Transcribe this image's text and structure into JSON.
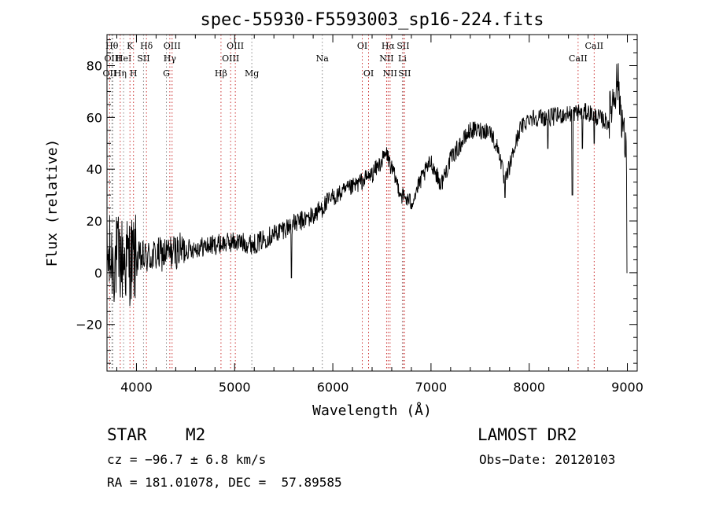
{
  "chart_data": {
    "type": "line",
    "title": "spec-55930-F5593003_sp16-224.fits",
    "xlabel": "Wavelength (Å)",
    "ylabel": "Flux (relative)",
    "xlim": [
      3700,
      9100
    ],
    "ylim": [
      -38,
      92
    ],
    "x_ticks": [
      4000,
      5000,
      6000,
      7000,
      8000,
      9000
    ],
    "y_ticks": [
      -20,
      0,
      20,
      40,
      60,
      80
    ],
    "x_tick_labels": [
      "4000",
      "5000",
      "6000",
      "7000",
      "8000",
      "9000"
    ],
    "y_tick_labels": [
      "−20",
      "0",
      "20",
      "40",
      "60",
      "80"
    ],
    "grid": false,
    "series": [
      {
        "name": "flux",
        "continuum": [
          [
            3700,
            5
          ],
          [
            4000,
            5
          ],
          [
            4500,
            9
          ],
          [
            5000,
            12
          ],
          [
            5200,
            11
          ],
          [
            5500,
            17
          ],
          [
            5800,
            22
          ],
          [
            6000,
            29
          ],
          [
            6200,
            33
          ],
          [
            6400,
            38
          ],
          [
            6550,
            46
          ],
          [
            6600,
            40
          ],
          [
            6700,
            30
          ],
          [
            6800,
            27
          ],
          [
            6900,
            36
          ],
          [
            7000,
            43
          ],
          [
            7100,
            34
          ],
          [
            7200,
            44
          ],
          [
            7400,
            55
          ],
          [
            7600,
            55
          ],
          [
            7700,
            46
          ],
          [
            7750,
            34
          ],
          [
            7900,
            55
          ],
          [
            8000,
            60
          ],
          [
            8200,
            60
          ],
          [
            8500,
            62
          ],
          [
            8600,
            62
          ],
          [
            8800,
            58
          ],
          [
            8900,
            75
          ],
          [
            8960,
            55
          ],
          [
            9000,
            40
          ]
        ],
        "dips": [
          [
            5577,
            -2
          ],
          [
            7754,
            29
          ],
          [
            8190,
            48
          ],
          [
            8440,
            30
          ],
          [
            8542,
            48
          ],
          [
            8662,
            50
          ],
          [
            9000,
            0
          ]
        ]
      }
    ],
    "lines_red": [
      {
        "x": 3727,
        "labels": [
          {
            "text": "OII",
            "row": 3
          }
        ]
      },
      {
        "x": 3835,
        "labels": [
          {
            "text": "Hη",
            "row": 3
          }
        ]
      },
      {
        "x": 3934,
        "labels": [
          {
            "text": "K",
            "row": 1
          }
        ]
      },
      {
        "x": 3970,
        "labels": [
          {
            "text": "H",
            "row": 3
          }
        ]
      },
      {
        "x": 4102,
        "labels": [
          {
            "text": "Hδ",
            "row": 1
          }
        ]
      },
      {
        "x": 4340,
        "labels": [
          {
            "text": "Hγ",
            "row": 2
          }
        ]
      },
      {
        "x": 4363,
        "labels": [
          {
            "text": "OIII",
            "row": 1
          }
        ]
      },
      {
        "x": 4861,
        "labels": [
          {
            "text": "Hβ",
            "row": 3
          }
        ]
      },
      {
        "x": 4959,
        "labels": [
          {
            "text": "OIII",
            "row": 2
          }
        ]
      },
      {
        "x": 5007,
        "labels": [
          {
            "text": "OIII",
            "row": 1
          }
        ]
      },
      {
        "x": 6300,
        "labels": [
          {
            "text": "OI",
            "row": 1
          }
        ]
      },
      {
        "x": 6364,
        "labels": [
          {
            "text": "OI",
            "row": 3
          }
        ]
      },
      {
        "x": 6548,
        "labels": [
          {
            "text": "NII",
            "row": 2
          }
        ]
      },
      {
        "x": 6563,
        "labels": [
          {
            "text": "Hα",
            "row": 1
          }
        ]
      },
      {
        "x": 6583,
        "labels": [
          {
            "text": "NII",
            "row": 3
          }
        ]
      },
      {
        "x": 6716,
        "labels": [
          {
            "text": "SII",
            "row": 1
          }
        ]
      },
      {
        "x": 6731,
        "labels": [
          {
            "text": "SII",
            "row": 3
          }
        ]
      },
      {
        "x": 8498,
        "labels": [
          {
            "text": "CaII",
            "row": 2
          }
        ]
      },
      {
        "x": 8662,
        "labels": [
          {
            "text": "CaII",
            "row": 1
          }
        ]
      }
    ],
    "lines_gray": [
      {
        "x": 3750,
        "labels": [
          {
            "text": "Hθ",
            "row": 1
          }
        ]
      },
      {
        "x": 3760,
        "labels": [
          {
            "text": "OIII",
            "row": 2
          }
        ]
      },
      {
        "x": 3869,
        "labels": [
          {
            "text": "HeI",
            "row": 2
          }
        ]
      },
      {
        "x": 4072,
        "labels": [
          {
            "text": "SII",
            "row": 2
          }
        ]
      },
      {
        "x": 4305,
        "labels": [
          {
            "text": "G",
            "row": 3
          }
        ]
      },
      {
        "x": 5175,
        "labels": [
          {
            "text": "Mg",
            "row": 3
          }
        ]
      },
      {
        "x": 5893,
        "labels": [
          {
            "text": "Na",
            "row": 2
          }
        ]
      },
      {
        "x": 6708,
        "labels": [
          {
            "text": "Li",
            "row": 2
          }
        ]
      }
    ]
  },
  "info": {
    "class_label": "STAR",
    "subclass": "M2",
    "survey": "LAMOST DR2",
    "cz": "cz = −96.7 ± 6.8 km/s",
    "obs_date": "Obs−Date: 20120103",
    "coords": "RA = 181.01078, DEC =  57.89585"
  }
}
